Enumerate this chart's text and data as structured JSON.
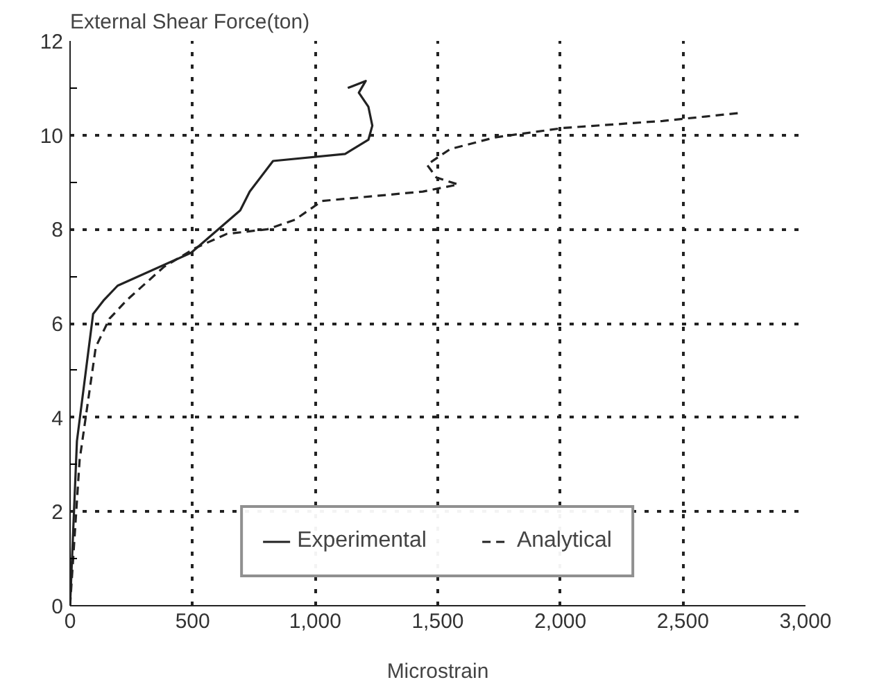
{
  "chart_data": {
    "type": "line",
    "xlabel": "Microstrain",
    "ylabel": "External Shear Force(ton)",
    "xlim": [
      0,
      3000
    ],
    "ylim": [
      0,
      12
    ],
    "xticks": [
      0,
      {
        "value": 500,
        "label": "500"
      },
      {
        "value": 1000,
        "label": "1,000"
      },
      {
        "value": 1500,
        "label": "1,500"
      },
      {
        "value": 2000,
        "label": "2,000"
      },
      {
        "value": 2500,
        "label": "2,500"
      },
      {
        "value": 3000,
        "label": "3,000"
      }
    ],
    "yticks": [
      0,
      2,
      4,
      6,
      8,
      10,
      12
    ],
    "grid": true,
    "legend": "bottom",
    "series": [
      {
        "name": "Experimental",
        "color": "#222222",
        "line_style": "solid",
        "x": [
          0,
          28,
          94,
          139,
          194,
          494,
          694,
          733,
          828,
          1122,
          1217,
          1233,
          1217,
          1178,
          1206,
          1133
        ],
        "values": [
          0,
          3.5,
          6.2,
          6.5,
          6.8,
          7.5,
          8.4,
          8.8,
          9.45,
          9.6,
          9.9,
          10.2,
          10.6,
          10.9,
          11.15,
          11.0
        ]
      },
      {
        "name": "Analytical",
        "color": "#222222",
        "line_style": "dashed",
        "x": [
          0,
          39,
          105,
          161,
          233,
          383,
          511,
          639,
          806,
          917,
          1028,
          1439,
          1583,
          1494,
          1456,
          1550,
          1733,
          2011,
          2417,
          2733
        ],
        "values": [
          0,
          3.1,
          5.5,
          6.1,
          6.5,
          7.2,
          7.6,
          7.9,
          8.0,
          8.2,
          8.6,
          8.8,
          8.95,
          9.1,
          9.37,
          9.7,
          9.95,
          10.15,
          10.3,
          10.47
        ]
      }
    ]
  }
}
